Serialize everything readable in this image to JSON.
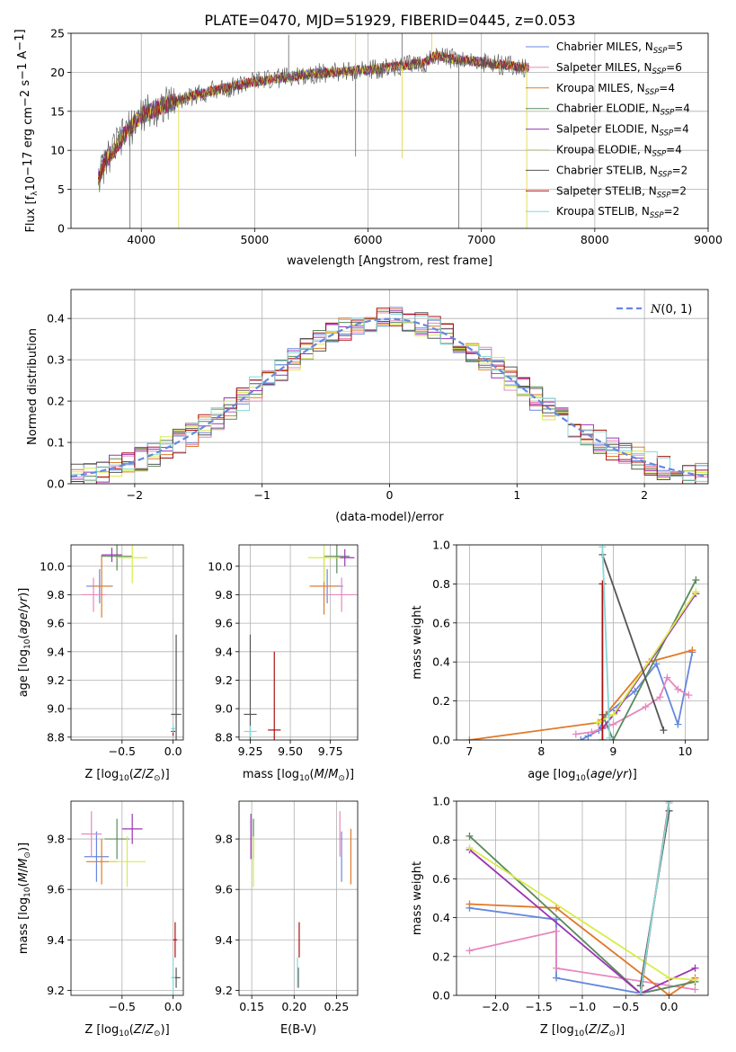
{
  "figure": {
    "title": "PLATE=0470, MJD=51929, FIBERID=0445, z=0.053"
  },
  "series": [
    {
      "name": "Chabrier MILES, N$_{SSP}$=5",
      "label": "Chabrier MILES, N",
      "sub": "SSP",
      "suffix": "=5",
      "color": "#6688dd"
    },
    {
      "name": "Salpeter MILES, N$_{SSP}$=6",
      "label": "Salpeter MILES, N",
      "sub": "SSP",
      "suffix": "=6",
      "color": "#e788be"
    },
    {
      "name": "Kroupa MILES, N$_{SSP}$=4",
      "label": "Kroupa MILES, N",
      "sub": "SSP",
      "suffix": "=4",
      "color": "#e07a2a"
    },
    {
      "name": "Chabrier ELODIE, N$_{SSP}$=4",
      "label": "Chabrier ELODIE, N",
      "sub": "SSP",
      "suffix": "=4",
      "color": "#5a8a5a"
    },
    {
      "name": "Salpeter ELODIE, N$_{SSP}$=4",
      "label": "Salpeter ELODIE, N",
      "sub": "SSP",
      "suffix": "=4",
      "color": "#9b35b5"
    },
    {
      "name": "Kroupa ELODIE, N$_{SSP}$=4",
      "label": "Kroupa ELODIE, N",
      "sub": "SSP",
      "suffix": "=4",
      "color": "#d8ec4a"
    },
    {
      "name": "Chabrier STELIB, N$_{SSP}$=2",
      "label": "Chabrier STELIB, N",
      "sub": "SSP",
      "suffix": "=2",
      "color": "#555555"
    },
    {
      "name": "Salpeter STELIB, N$_{SSP}$=2",
      "label": "Salpeter STELIB, N",
      "sub": "SSP",
      "suffix": "=2",
      "color": "#aa1111"
    },
    {
      "name": "Kroupa STELIB, N$_{SSP}$=2",
      "label": "Kroupa STELIB, N",
      "sub": "SSP",
      "suffix": "=2",
      "color": "#88d8d8"
    }
  ],
  "chart_data": [
    {
      "id": "spectrum",
      "type": "line",
      "xlabel": "wavelength [Angstrom, rest frame]",
      "ylabel": "Flux [f$_\\lambda$10$^{-17}$ erg cm$^{-2}$ s$^{-1}$ A$^{-1}$]",
      "ylabel_parts": {
        "pre": "Flux [f",
        "lambda": "λ",
        "mid": "10",
        "exp1": "−17",
        "mid2": " erg cm",
        "exp2": "−2",
        "mid3": " s",
        "exp3": "−1",
        "mid4": " A",
        "exp4": "−1",
        "post": "]"
      },
      "xlim": [
        3380,
        9000
      ],
      "ylim": [
        0,
        25
      ],
      "xticks": [
        4000,
        5000,
        6000,
        7000,
        8000,
        9000
      ],
      "yticks": [
        0,
        5,
        10,
        15,
        20,
        25
      ],
      "legend": "right",
      "x_range": [
        3620,
        7420
      ],
      "continuum_points": [
        [
          3620,
          6.5
        ],
        [
          3700,
          9
        ],
        [
          3850,
          12
        ],
        [
          4000,
          14.5
        ],
        [
          4200,
          15.8
        ],
        [
          4500,
          17.2
        ],
        [
          5000,
          18.8
        ],
        [
          5500,
          19.8
        ],
        [
          6000,
          20.3
        ],
        [
          6500,
          21.2
        ],
        [
          6600,
          22.2
        ],
        [
          6700,
          21.8
        ],
        [
          7000,
          21.3
        ],
        [
          7400,
          20.6
        ]
      ],
      "spikes": [
        [
          5300,
          24.8
        ],
        [
          5890,
          25
        ],
        [
          6300,
          25
        ],
        [
          6563,
          25
        ],
        [
          5890,
          9.2
        ],
        [
          6300,
          9.0
        ],
        [
          3900,
          0
        ],
        [
          4330,
          0
        ],
        [
          6800,
          0
        ],
        [
          7400,
          0
        ]
      ]
    },
    {
      "id": "residual-hist",
      "type": "bar",
      "xlabel": "(data-model)/error",
      "ylabel": "Normed distribution",
      "xlim": [
        -2.5,
        2.5
      ],
      "ylim": [
        0,
        0.47
      ],
      "xticks": [
        -2,
        -1,
        0,
        1,
        2
      ],
      "yticks": [
        0.0,
        0.1,
        0.2,
        0.3,
        0.4
      ],
      "reference": {
        "name": "N(0,1)",
        "label": "(0, 1)",
        "color": "#6688dd",
        "mean": 0,
        "sigma": 1
      },
      "bin_width": 0.1,
      "legend": "top-right"
    },
    {
      "id": "age-vs-Z",
      "type": "scatter",
      "xlabel": "Z [log$_{10}$(Z/Z$_\\odot$)]",
      "ylabel": "age  [log$_{10}$(age/yr)]",
      "xlim": [
        -1.0,
        0.1
      ],
      "ylim": [
        8.78,
        10.15
      ],
      "xticks": [
        -0.5,
        0.0
      ],
      "yticks": [
        8.8,
        9.0,
        9.2,
        9.4,
        9.6,
        9.8,
        10.0
      ],
      "points": [
        {
          "s": 0,
          "x": -0.72,
          "y": 9.86,
          "xe": 0.13,
          "ye": 0.12
        },
        {
          "s": 1,
          "x": -0.78,
          "y": 9.8,
          "xe": 0.12,
          "ye": 0.12
        },
        {
          "s": 2,
          "x": -0.7,
          "y": 9.86,
          "xe": 0.09,
          "ye": 0.22
        },
        {
          "s": 3,
          "x": -0.55,
          "y": 10.07,
          "xe": 0.15,
          "ye": 0.1
        },
        {
          "s": 4,
          "x": -0.6,
          "y": 10.08,
          "xe": 0.1,
          "ye": 0.05
        },
        {
          "s": 5,
          "x": -0.4,
          "y": 10.06,
          "xe": 0.15,
          "ye": 0.18
        },
        {
          "s": 6,
          "x": 0.03,
          "y": 8.96,
          "xe": 0.05,
          "ye": 0.56
        },
        {
          "s": 7,
          "x": 0.0,
          "y": 8.84,
          "xe": 0.02,
          "ye": 0.03
        },
        {
          "s": 8,
          "x": 0.0,
          "y": 8.86,
          "xe": 0.02,
          "ye": 0.03
        }
      ]
    },
    {
      "id": "age-vs-mass",
      "type": "scatter",
      "xlabel": "mass [log$_{10}$(M/M$_\\odot$)]",
      "ylabel": "",
      "xlim": [
        9.18,
        9.92
      ],
      "ylim": [
        8.78,
        10.15
      ],
      "xticks": [
        9.25,
        9.5,
        9.75
      ],
      "yticks": [
        8.8,
        9.0,
        9.2,
        9.4,
        9.6,
        9.8,
        10.0
      ],
      "points": [
        {
          "s": 0,
          "x": 9.73,
          "y": 9.86,
          "xe": 0.1,
          "ye": 0.12
        },
        {
          "s": 1,
          "x": 9.82,
          "y": 9.8,
          "xe": 0.09,
          "ye": 0.12
        },
        {
          "s": 2,
          "x": 9.71,
          "y": 9.86,
          "xe": 0.09,
          "ye": 0.2
        },
        {
          "s": 3,
          "x": 9.79,
          "y": 10.07,
          "xe": 0.08,
          "ye": 0.12
        },
        {
          "s": 4,
          "x": 9.84,
          "y": 10.06,
          "xe": 0.06,
          "ye": 0.06
        },
        {
          "s": 5,
          "x": 9.71,
          "y": 10.06,
          "xe": 0.1,
          "ye": 0.17
        },
        {
          "s": 6,
          "x": 9.25,
          "y": 8.96,
          "xe": 0.04,
          "ye": 0.56
        },
        {
          "s": 7,
          "x": 9.4,
          "y": 8.85,
          "xe": 0.04,
          "ye": 0.55
        },
        {
          "s": 8,
          "x": 9.25,
          "y": 8.84,
          "xe": 0.04,
          "ye": 0.04
        }
      ]
    },
    {
      "id": "mass-weight-vs-age",
      "type": "line",
      "xlabel": "age  [log$_{10}$(age/yr)]",
      "ylabel": "mass weight",
      "xlim": [
        6.82,
        10.32
      ],
      "ylim": [
        0,
        1.0
      ],
      "xticks": [
        7,
        8,
        9,
        10
      ],
      "yticks": [
        0.0,
        0.2,
        0.4,
        0.6,
        0.8,
        1.0
      ],
      "lines": [
        {
          "s": 0,
          "x": [
            8.55,
            8.65,
            8.8,
            8.9,
            9.3,
            9.6,
            9.9,
            10.1
          ],
          "y": [
            0.0,
            0.02,
            0.05,
            0.13,
            0.25,
            0.39,
            0.08,
            0.45
          ]
        },
        {
          "s": 1,
          "x": [
            8.48,
            8.7,
            9.0,
            9.45,
            9.65,
            9.75,
            9.9,
            10.05
          ],
          "y": [
            0.03,
            0.04,
            0.08,
            0.17,
            0.22,
            0.32,
            0.26,
            0.23
          ]
        },
        {
          "s": 2,
          "x": [
            7.0,
            8.8,
            9.5,
            10.1
          ],
          "y": [
            0.0,
            0.09,
            0.4,
            0.46
          ]
        },
        {
          "s": 3,
          "x": [
            8.85,
            9.0,
            10.15
          ],
          "y": [
            0.13,
            0.0,
            0.82
          ]
        },
        {
          "s": 4,
          "x": [
            8.85,
            9.05,
            10.15
          ],
          "y": [
            0.06,
            0.15,
            0.75
          ]
        },
        {
          "s": 5,
          "x": [
            8.78,
            9.0,
            10.15
          ],
          "y": [
            0.09,
            0.13,
            0.76
          ]
        },
        {
          "s": 6,
          "x": [
            8.85,
            9.7
          ],
          "y": [
            0.95,
            0.05
          ]
        },
        {
          "s": 7,
          "x": [
            8.85,
            8.85
          ],
          "y": [
            0.0,
            0.8
          ]
        },
        {
          "s": 8,
          "x": [
            8.85,
            8.95
          ],
          "y": [
            0.99,
            0.01
          ]
        }
      ]
    },
    {
      "id": "mass-vs-Z",
      "type": "scatter",
      "xlabel": "Z [log$_{10}$(Z/Z$_\\odot$)]",
      "ylabel": "mass [log$_{10}$(M/M$_\\odot$)]",
      "xlim": [
        -1.0,
        0.1
      ],
      "ylim": [
        9.18,
        9.95
      ],
      "xticks": [
        -0.5,
        0.0
      ],
      "yticks": [
        9.2,
        9.4,
        9.6,
        9.8
      ],
      "points": [
        {
          "s": 0,
          "x": -0.75,
          "y": 9.73,
          "xe": 0.12,
          "ye": 0.1
        },
        {
          "s": 1,
          "x": -0.8,
          "y": 9.82,
          "xe": 0.1,
          "ye": 0.09
        },
        {
          "s": 2,
          "x": -0.7,
          "y": 9.71,
          "xe": 0.15,
          "ye": 0.09
        },
        {
          "s": 3,
          "x": -0.55,
          "y": 9.8,
          "xe": 0.12,
          "ye": 0.08
        },
        {
          "s": 4,
          "x": -0.4,
          "y": 9.84,
          "xe": 0.1,
          "ye": 0.06
        },
        {
          "s": 5,
          "x": -0.45,
          "y": 9.71,
          "xe": 0.18,
          "ye": 0.1
        },
        {
          "s": 6,
          "x": 0.03,
          "y": 9.25,
          "xe": 0.04,
          "ye": 0.04
        },
        {
          "s": 7,
          "x": 0.02,
          "y": 9.4,
          "xe": 0.02,
          "ye": 0.07
        },
        {
          "s": 8,
          "x": 0.0,
          "y": 9.25,
          "xe": 0.02,
          "ye": 0.08
        }
      ]
    },
    {
      "id": "mass-vs-EBV",
      "type": "scatter",
      "xlabel": "E(B-V)",
      "ylabel": "",
      "xlim": [
        0.135,
        0.275
      ],
      "ylim": [
        9.18,
        9.95
      ],
      "xticks": [
        0.15,
        0.2,
        0.25
      ],
      "yticks": [
        9.2,
        9.4,
        9.6,
        9.8
      ],
      "points": [
        {
          "s": 0,
          "x": 0.256,
          "y": 9.73,
          "xe": 0.0,
          "ye": 0.1
        },
        {
          "s": 1,
          "x": 0.254,
          "y": 9.82,
          "xe": 0.0,
          "ye": 0.09
        },
        {
          "s": 2,
          "x": 0.267,
          "y": 9.73,
          "xe": 0.0,
          "ye": 0.11
        },
        {
          "s": 3,
          "x": 0.152,
          "y": 9.8,
          "xe": 0.0,
          "ye": 0.08
        },
        {
          "s": 4,
          "x": 0.149,
          "y": 9.81,
          "xe": 0.0,
          "ye": 0.09
        },
        {
          "s": 5,
          "x": 0.152,
          "y": 9.71,
          "xe": 0.0,
          "ye": 0.1
        },
        {
          "s": 6,
          "x": 0.205,
          "y": 9.25,
          "xe": 0.0,
          "ye": 0.04
        },
        {
          "s": 7,
          "x": 0.206,
          "y": 9.4,
          "xe": 0.0,
          "ye": 0.07
        },
        {
          "s": 8,
          "x": 0.204,
          "y": 9.27,
          "xe": 0.0,
          "ye": 0.06
        }
      ]
    },
    {
      "id": "mass-weight-vs-Z",
      "type": "line",
      "xlabel": "Z [log$_{10}$(Z/Z$_\\odot$)]",
      "ylabel": "mass weight",
      "xlim": [
        -2.45,
        0.45
      ],
      "ylim": [
        0,
        1.0
      ],
      "xticks": [
        -2.0,
        -1.5,
        -1.0,
        -0.5,
        0.0
      ],
      "yticks": [
        0.0,
        0.2,
        0.4,
        0.6,
        0.8,
        1.0
      ],
      "lines": [
        {
          "s": 0,
          "x": [
            -2.3,
            -1.3,
            -1.3,
            -0.33,
            0.3
          ],
          "y": [
            0.45,
            0.39,
            0.09,
            0.01,
            0.07
          ]
        },
        {
          "s": 1,
          "x": [
            -2.3,
            -1.3,
            -1.3,
            0.3
          ],
          "y": [
            0.23,
            0.33,
            0.14,
            0.03
          ]
        },
        {
          "s": 2,
          "x": [
            -2.3,
            -1.3,
            0.0,
            0.3
          ],
          "y": [
            0.47,
            0.45,
            0.0,
            0.09
          ]
        },
        {
          "s": 3,
          "x": [
            -2.3,
            -0.33,
            0.3
          ],
          "y": [
            0.82,
            0.01,
            0.07
          ]
        },
        {
          "s": 4,
          "x": [
            -2.3,
            -0.33,
            0.3
          ],
          "y": [
            0.75,
            0.01,
            0.14
          ]
        },
        {
          "s": 5,
          "x": [
            -2.3,
            0.0,
            0.3
          ],
          "y": [
            0.76,
            0.09,
            0.08
          ]
        },
        {
          "s": 6,
          "x": [
            -0.33,
            0.0
          ],
          "y": [
            0.05,
            0.95
          ]
        },
        {
          "s": 7,
          "x": [
            -0.33,
            0.0
          ],
          "y": [
            0.0,
            1.0
          ]
        },
        {
          "s": 8,
          "x": [
            -0.33,
            0.0
          ],
          "y": [
            0.01,
            0.99
          ]
        }
      ]
    }
  ]
}
